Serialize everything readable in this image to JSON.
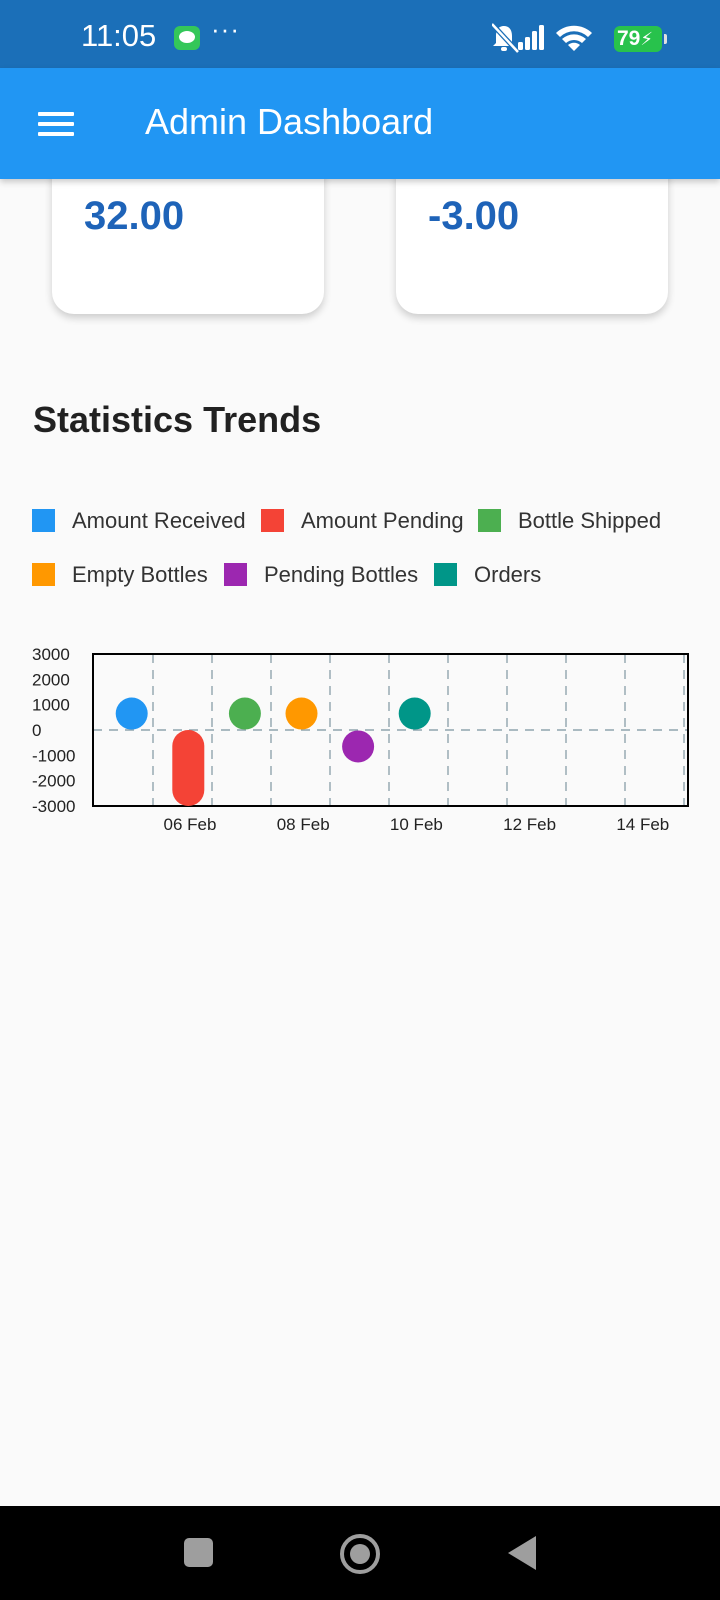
{
  "status_bar": {
    "time": "11:05",
    "more": "···",
    "battery": "79",
    "icons": [
      "message-icon",
      "mute-icon",
      "signal-icon",
      "wifi-icon",
      "battery-icon"
    ]
  },
  "app_bar": {
    "title": "Admin Dashboard",
    "menu_icon": "hamburger-menu-icon",
    "color": "#2196f3"
  },
  "cards": [
    {
      "value": "32.00"
    },
    {
      "value": "-3.00"
    }
  ],
  "section": {
    "title": "Statistics Trends"
  },
  "legend": [
    {
      "label": "Amount Received",
      "color": "#2196f3"
    },
    {
      "label": "Amount Pending",
      "color": "#f44336"
    },
    {
      "label": "Bottle Shipped",
      "color": "#4caf50"
    },
    {
      "label": "Empty Bottles",
      "color": "#ff9800"
    },
    {
      "label": "Pending Bottles",
      "color": "#9c27b0"
    },
    {
      "label": "Orders",
      "color": "#009688"
    }
  ],
  "chart_data": {
    "type": "scatter",
    "title": "",
    "xlabel": "",
    "ylabel": "",
    "y_ticks": [
      "3000",
      "2000",
      "1000",
      "0",
      "-1000",
      "-2000",
      "-3000"
    ],
    "ylim": [
      -3000,
      3000
    ],
    "x_ticks": [
      "06 Feb",
      "08 Feb",
      "10 Feb",
      "12 Feb",
      "14 Feb"
    ],
    "grid": true,
    "series": [
      {
        "name": "Amount Received",
        "points": [
          {
            "x": "05 Feb",
            "y": 650
          }
        ]
      },
      {
        "name": "Amount Pending",
        "points": [
          {
            "x": "06 Feb",
            "y": -1500,
            "range": [
              -3000,
              0
            ]
          }
        ]
      },
      {
        "name": "Bottle Shipped",
        "points": [
          {
            "x": "07 Feb",
            "y": 650
          }
        ]
      },
      {
        "name": "Empty Bottles",
        "points": [
          {
            "x": "08 Feb",
            "y": 650
          }
        ]
      },
      {
        "name": "Pending Bottles",
        "points": [
          {
            "x": "09 Feb",
            "y": -650
          }
        ]
      },
      {
        "name": "Orders",
        "points": [
          {
            "x": "10 Feb",
            "y": 650
          }
        ]
      }
    ]
  },
  "nav_bar": {
    "buttons": [
      "recents-icon",
      "home-icon",
      "back-icon"
    ]
  }
}
